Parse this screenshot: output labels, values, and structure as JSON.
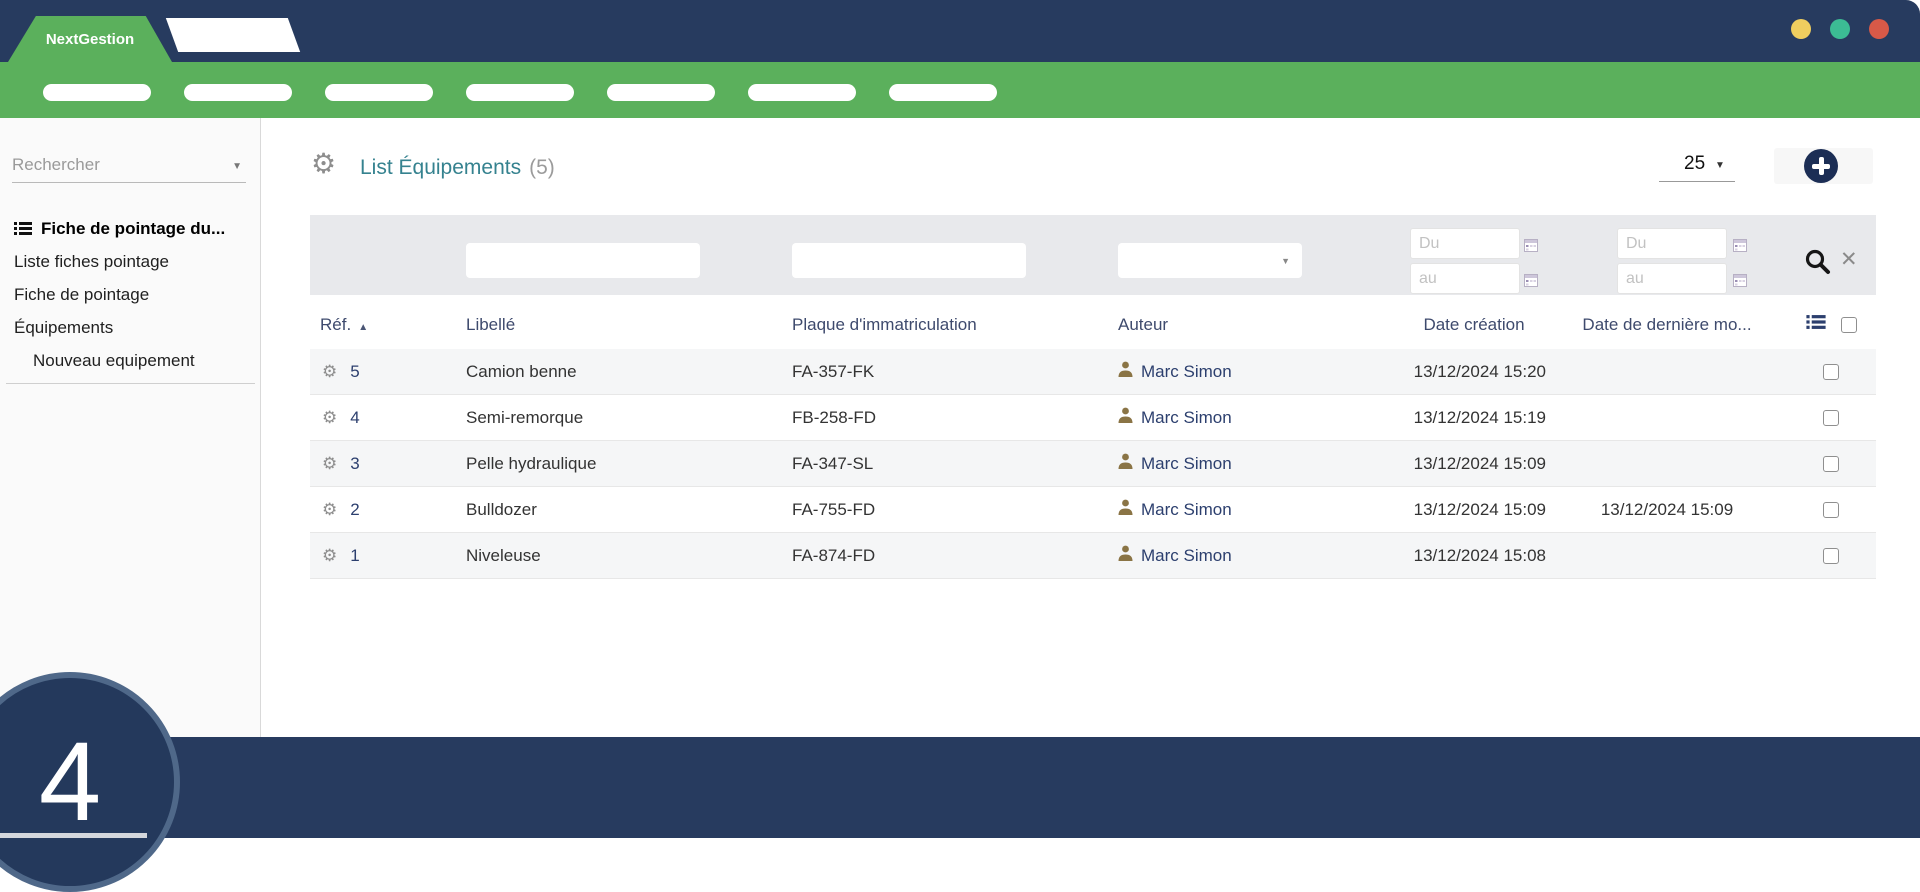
{
  "app": {
    "brand": "NextGestion",
    "colors": {
      "navy": "#273b5f",
      "green": "#5bb05c",
      "title_teal": "#35828f",
      "link_navy": "#2c3f6e",
      "dot_yellow": "#efce5f",
      "dot_teal": "#3cbc94",
      "dot_red": "#d85948"
    }
  },
  "icons": {
    "gear": "⚙",
    "caret_down": "▼",
    "sort_asc": "▲",
    "clear": "✕"
  },
  "nav": {
    "placeholder_count": 7
  },
  "sidebar": {
    "search_placeholder": "Rechercher",
    "items": [
      {
        "label": "Fiche de pointage du...",
        "bold": true,
        "icon": "list"
      },
      {
        "label": "Liste fiches pointage"
      },
      {
        "label": "Fiche de pointage"
      },
      {
        "label": "Équipements"
      },
      {
        "label": "Nouveau equipement",
        "indent": true
      }
    ]
  },
  "main": {
    "title": "List Équipements",
    "count_label": "(5)",
    "page_size": "25",
    "filters": {
      "du_placeholder": "Du",
      "au_placeholder": "au"
    },
    "table": {
      "columns": [
        "Réf.",
        "Libellé",
        "Plaque d'immatriculation",
        "Auteur",
        "Date création",
        "Date de dernière mo..."
      ],
      "rows": [
        {
          "ref": "5",
          "libelle": "Camion benne",
          "plaque": "FA-357-FK",
          "auteur": "Marc Simon",
          "date_creation": "13/12/2024 15:20",
          "date_modif": ""
        },
        {
          "ref": "4",
          "libelle": "Semi-remorque",
          "plaque": "FB-258-FD",
          "auteur": "Marc Simon",
          "date_creation": "13/12/2024 15:19",
          "date_modif": ""
        },
        {
          "ref": "3",
          "libelle": "Pelle hydraulique",
          "plaque": "FA-347-SL",
          "auteur": "Marc Simon",
          "date_creation": "13/12/2024 15:09",
          "date_modif": ""
        },
        {
          "ref": "2",
          "libelle": "Bulldozer",
          "plaque": "FA-755-FD",
          "auteur": "Marc Simon",
          "date_creation": "13/12/2024 15:09",
          "date_modif": "13/12/2024 15:09"
        },
        {
          "ref": "1",
          "libelle": "Niveleuse",
          "plaque": "FA-874-FD",
          "auteur": "Marc Simon",
          "date_creation": "13/12/2024 15:08",
          "date_modif": ""
        }
      ]
    }
  },
  "footer": {
    "badge_number": "4"
  }
}
